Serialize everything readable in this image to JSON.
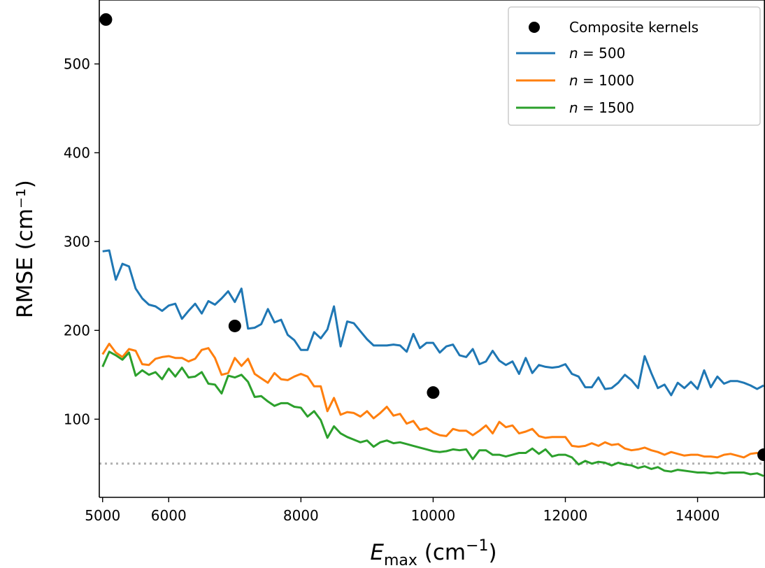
{
  "chart_data": {
    "type": "line",
    "xlabel": {
      "main": "E",
      "sub": "max",
      "unit_pre": " (cm",
      "unit_sup": "−1",
      "unit_post": ")"
    },
    "ylabel": "RMSE (cm⁻¹)",
    "xlim": [
      4950,
      15020
    ],
    "ylim": [
      12,
      572
    ],
    "xticks": [
      5000,
      6000,
      8000,
      10000,
      12000,
      14000
    ],
    "yticks": [
      100,
      200,
      300,
      400,
      500
    ],
    "reference_line": {
      "y": 50,
      "color": "#b0b0b0",
      "style": "dotted"
    },
    "legend_position": "top-right",
    "scatter": {
      "name": "Composite kernels",
      "color": "#000000",
      "points": [
        [
          5050,
          550
        ],
        [
          7000,
          205
        ],
        [
          10000,
          130
        ],
        [
          15000,
          60
        ]
      ]
    },
    "x": [
      5000,
      5100,
      5200,
      5300,
      5400,
      5500,
      5600,
      5700,
      5800,
      5900,
      6000,
      6100,
      6200,
      6300,
      6400,
      6500,
      6600,
      6700,
      6800,
      6900,
      7000,
      7100,
      7200,
      7300,
      7400,
      7500,
      7600,
      7700,
      7800,
      7900,
      8000,
      8100,
      8200,
      8300,
      8400,
      8500,
      8600,
      8700,
      8800,
      8900,
      9000,
      9100,
      9200,
      9300,
      9400,
      9500,
      9600,
      9700,
      9800,
      9900,
      10000,
      10100,
      10200,
      10300,
      10400,
      10500,
      10600,
      10700,
      10800,
      10900,
      11000,
      11100,
      11200,
      11300,
      11400,
      11500,
      11600,
      11700,
      11800,
      11900,
      12000,
      12100,
      12200,
      12300,
      12400,
      12500,
      12600,
      12700,
      12800,
      12900,
      13000,
      13100,
      13200,
      13300,
      13400,
      13500,
      13600,
      13700,
      13800,
      13900,
      14000,
      14100,
      14200,
      14300,
      14400,
      14500,
      14600,
      14700,
      14800,
      14900,
      15000
    ],
    "series": [
      {
        "name": "n = 500",
        "color": "#1f77b4",
        "values": [
          289,
          290,
          257,
          275,
          272,
          247,
          236,
          229,
          227,
          222,
          228,
          230,
          213,
          222,
          230,
          219,
          233,
          229,
          236,
          244,
          232,
          247,
          202,
          203,
          207,
          224,
          209,
          212,
          195,
          189,
          178,
          178,
          198,
          191,
          201,
          227,
          182,
          210,
          208,
          199,
          190,
          183,
          183,
          183,
          184,
          183,
          176,
          196,
          180,
          186,
          186,
          175,
          182,
          184,
          172,
          170,
          179,
          162,
          165,
          177,
          166,
          161,
          165,
          151,
          169,
          152,
          161,
          159,
          158,
          159,
          162,
          151,
          148,
          136,
          136,
          147,
          134,
          135,
          141,
          150,
          144,
          135,
          171,
          152,
          135,
          139,
          127,
          141,
          135,
          142,
          134,
          155,
          136,
          148,
          140,
          143,
          143,
          141,
          138,
          134,
          138
        ]
      },
      {
        "name": "n = 1000",
        "color": "#ff7f0e",
        "values": [
          173,
          185,
          175,
          170,
          179,
          177,
          162,
          161,
          168,
          170,
          171,
          169,
          169,
          165,
          168,
          178,
          180,
          169,
          150,
          152,
          169,
          160,
          168,
          151,
          146,
          141,
          152,
          145,
          144,
          148,
          151,
          148,
          137,
          137,
          109,
          124,
          105,
          108,
          107,
          103,
          109,
          101,
          107,
          114,
          104,
          106,
          95,
          98,
          88,
          90,
          85,
          82,
          81,
          89,
          87,
          87,
          82,
          87,
          93,
          84,
          97,
          91,
          93,
          84,
          86,
          89,
          81,
          79,
          80,
          80,
          80,
          70,
          69,
          70,
          73,
          70,
          74,
          71,
          72,
          67,
          65,
          66,
          68,
          65,
          63,
          60,
          63,
          61,
          59,
          60,
          60,
          58,
          58,
          57,
          60,
          61,
          59,
          57,
          61,
          62,
          57
        ]
      },
      {
        "name": "n = 1500",
        "color": "#2ca02c",
        "values": [
          159,
          176,
          172,
          167,
          175,
          149,
          155,
          150,
          153,
          145,
          157,
          148,
          158,
          147,
          148,
          153,
          140,
          139,
          129,
          149,
          147,
          150,
          142,
          125,
          126,
          120,
          115,
          118,
          118,
          114,
          113,
          103,
          109,
          99,
          79,
          92,
          84,
          80,
          77,
          74,
          76,
          69,
          74,
          76,
          73,
          74,
          72,
          70,
          68,
          66,
          64,
          63,
          64,
          66,
          65,
          66,
          55,
          65,
          65,
          60,
          60,
          58,
          60,
          62,
          62,
          67,
          61,
          66,
          58,
          60,
          60,
          57,
          49,
          53,
          50,
          52,
          51,
          48,
          51,
          49,
          48,
          45,
          47,
          44,
          46,
          42,
          41,
          43,
          42,
          41,
          40,
          40,
          39,
          40,
          39,
          40,
          40,
          40,
          38,
          39,
          36
        ]
      }
    ]
  },
  "legend": {
    "entries": [
      {
        "text": "Composite kernels",
        "italic_prefix": "",
        "suffix": ""
      },
      {
        "text": "",
        "italic_prefix": "n",
        "suffix": " = 500"
      },
      {
        "text": "",
        "italic_prefix": "n",
        "suffix": " = 1000"
      },
      {
        "text": "",
        "italic_prefix": "n",
        "suffix": " = 1500"
      }
    ]
  }
}
